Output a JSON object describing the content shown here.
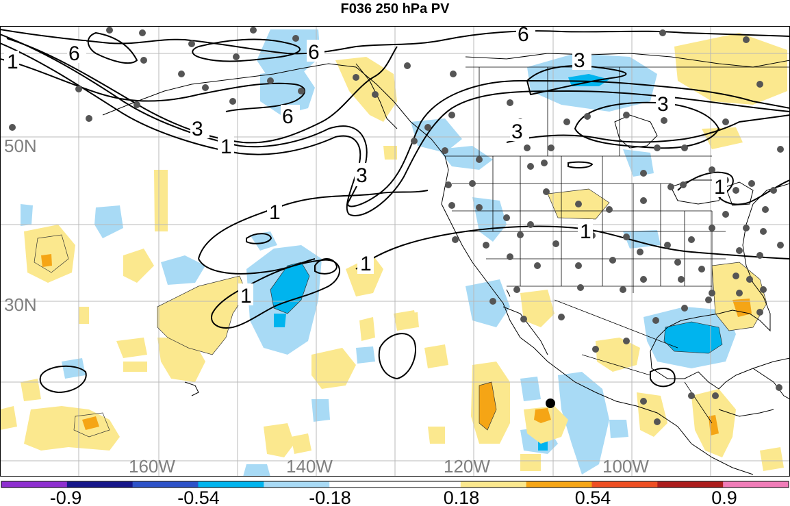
{
  "title": "F036 250 hPa PV",
  "lat_labels": [
    "50N",
    "30N"
  ],
  "lon_labels": [
    "160W",
    "140W",
    "120W",
    "100W"
  ],
  "contour_labels": [
    "1",
    "6",
    "6",
    "6",
    "3",
    "1",
    "3",
    "1",
    "1",
    "1",
    "6",
    "3",
    "3",
    "3",
    "1",
    "1"
  ],
  "colorbar": {
    "colors": [
      "#8e2fd0",
      "#16168a",
      "#2d52c8",
      "#00b4ee",
      "#a8daf5",
      "#ffffff",
      "#ffffff",
      "#fbe88e",
      "#f5a515",
      "#ee4e22",
      "#ac1d1d",
      "#f07cb8"
    ],
    "tick_labels": [
      "-0.9",
      "-0.54",
      "-0.18",
      "0.18",
      "0.54",
      "0.9"
    ]
  },
  "colors": {
    "pos_light": "#fbe88e",
    "pos_mid": "#f5a515",
    "neg_light": "#a8daf5",
    "neg_mid": "#00b4ee",
    "contour": "#000000",
    "station": "#555555",
    "grid": "#b8b8b8"
  }
}
